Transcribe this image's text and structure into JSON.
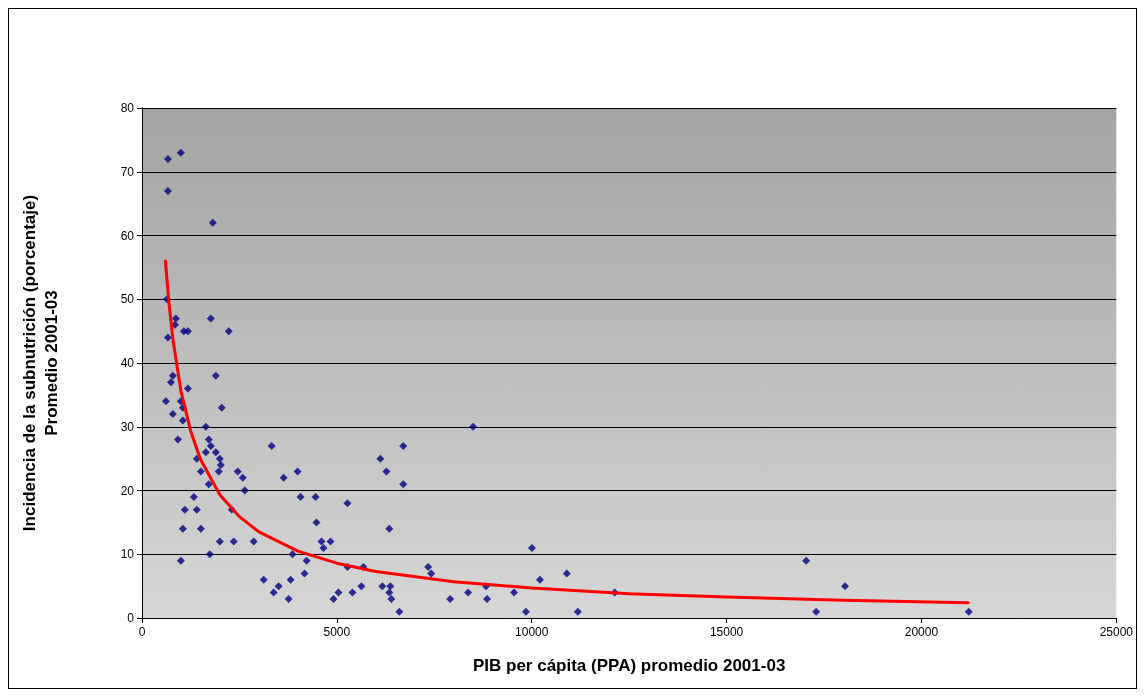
{
  "chart_data": {
    "type": "scatter",
    "xlabel": "PIB per cápita (PPA) promedio 2001-03",
    "ylabel": "Incidencia de la subnutrición (porcentaje)\nPromedio 2001-03",
    "xlim": [
      0,
      25000
    ],
    "xticks": [
      0,
      5000,
      10000,
      15000,
      20000,
      25000
    ],
    "ylim": [
      0,
      80
    ],
    "yticks": [
      0,
      10,
      20,
      30,
      40,
      50,
      60,
      70,
      80
    ],
    "grid": "y",
    "marker": "diamond",
    "series": [
      {
        "color": "#000080",
        "x": [
          665,
          998,
          665,
          1817,
          665,
          640,
          614,
          870,
          845,
          793,
          742,
          793,
          921,
          998,
          1049,
          1075,
          1177,
          1177,
          1049,
          998,
          1049,
          1100,
          1331,
          1407,
          1510,
          1510,
          1407,
          1638,
          1638,
          1715,
          1766,
          1715,
          1766,
          1740,
          1894,
          1894,
          1996,
          1970,
          2022,
          2047,
          1996,
          2226,
          2303,
          2354,
          2457,
          2585,
          2636,
          2866,
          3122,
          3327,
          3378,
          3506,
          3634,
          3762,
          3813,
          3864,
          3992,
          4069,
          4171,
          4222,
          4453,
          4478,
          4606,
          4657,
          4837,
          4913,
          5041,
          5271,
          5271,
          5399,
          5629,
          5680,
          6116,
          6167,
          6270,
          6346,
          6372,
          6346,
          6398,
          6602,
          6704,
          6704,
          7344,
          7421,
          7907,
          8368,
          8496,
          8829,
          8854,
          9545,
          9852,
          10006,
          10210,
          10901,
          11183,
          12130,
          17043,
          17299,
          18040,
          21213
        ],
        "values": [
          72,
          73,
          67,
          62,
          44,
          50,
          34,
          47,
          46,
          38,
          37,
          32,
          28,
          34,
          33,
          45,
          45,
          36,
          31,
          9,
          14,
          17,
          19,
          25,
          23,
          14,
          17,
          30,
          26,
          28,
          27,
          21,
          47,
          10,
          38,
          26,
          25,
          23,
          24,
          33,
          12,
          45,
          17,
          12,
          23,
          22,
          20,
          12,
          6,
          27,
          4,
          5,
          22,
          3,
          6,
          10,
          23,
          19,
          7,
          9,
          19,
          15,
          12,
          11,
          12,
          3,
          4,
          18,
          8,
          4,
          5,
          8,
          25,
          5,
          23,
          14,
          5,
          4,
          3,
          1,
          27,
          21,
          8,
          7,
          3,
          4,
          30,
          5,
          3,
          4,
          1,
          11,
          6,
          7,
          1,
          4,
          9,
          1,
          5,
          1
        ]
      },
      {
        "type": "line",
        "color": "#ff0000",
        "marker": "none",
        "x": [
          600,
          700,
          800,
          1000,
          1250,
          1500,
          2000,
          2500,
          3000,
          4000,
          5000,
          6000,
          8000,
          10000,
          12500,
          15000,
          18000,
          21200
        ],
        "values": [
          56,
          48.9,
          43.4,
          35.6,
          29.3,
          24.9,
          19.3,
          15.9,
          13.5,
          10.5,
          8.6,
          7.3,
          5.7,
          4.7,
          3.8,
          3.3,
          2.8,
          2.4
        ]
      }
    ]
  }
}
